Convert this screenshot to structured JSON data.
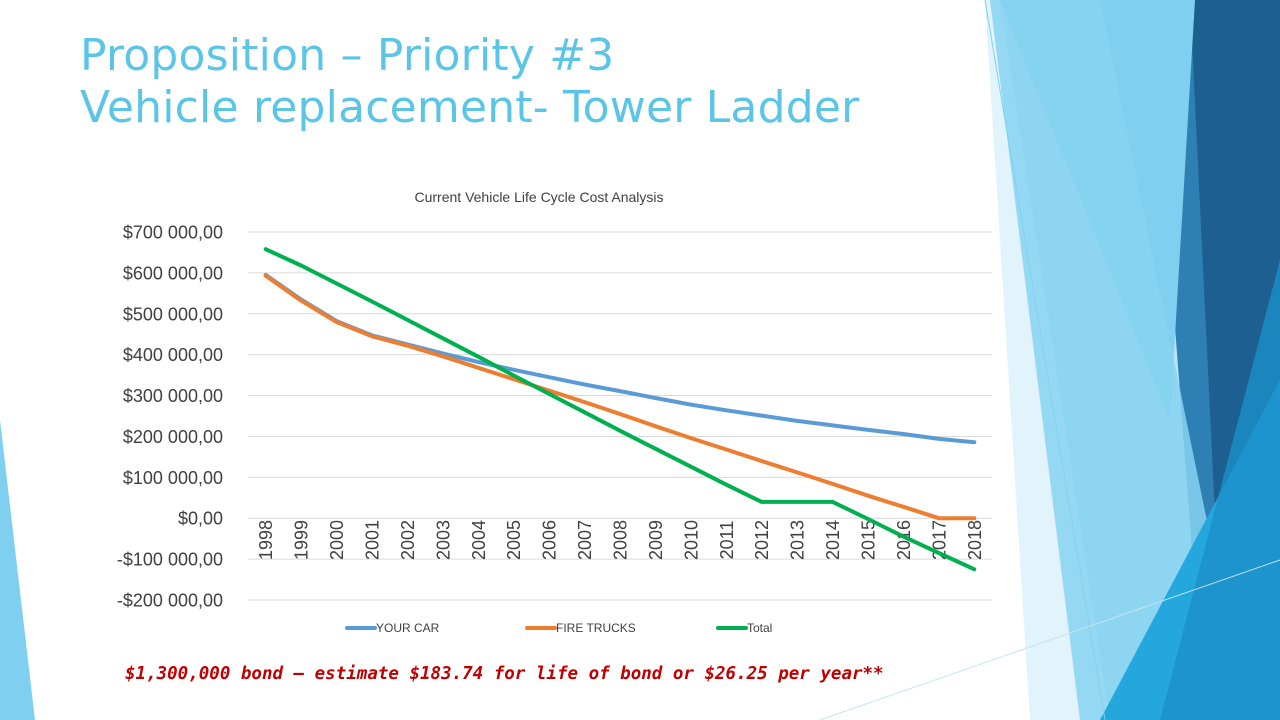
{
  "slide": {
    "title_line1": "Proposition – Priority #3",
    "title_line2": "Vehicle replacement- Tower Ladder",
    "footnote": "$1,300,000 bond – estimate $183.74 for life of bond or $26.25 per year**"
  },
  "chart_data": {
    "type": "line",
    "title": "Current Vehicle Life Cycle Cost Analysis",
    "xlabel": "",
    "ylabel": "",
    "categories": [
      "1998",
      "1999",
      "2000",
      "2001",
      "2002",
      "2003",
      "2004",
      "2005",
      "2006",
      "2007",
      "2008",
      "2009",
      "2010",
      "2011",
      "2012",
      "2013",
      "2014",
      "2015",
      "2016",
      "2017",
      "2018"
    ],
    "ylim": [
      -200000,
      700000
    ],
    "yticks": [
      {
        "value": 700000,
        "label": "$700 000,00"
      },
      {
        "value": 600000,
        "label": "$600 000,00"
      },
      {
        "value": 500000,
        "label": "$500 000,00"
      },
      {
        "value": 400000,
        "label": "$400 000,00"
      },
      {
        "value": 300000,
        "label": "$300 000,00"
      },
      {
        "value": 200000,
        "label": "$200 000,00"
      },
      {
        "value": 100000,
        "label": "$100 000,00"
      },
      {
        "value": 0,
        "label": "$0,00"
      },
      {
        "value": -100000,
        "label": "-$100 000,00"
      },
      {
        "value": -200000,
        "label": "-$200 000,00"
      }
    ],
    "grid": true,
    "legend_position": "bottom",
    "series": [
      {
        "name": "YOUR CAR",
        "color": "#5b9bd5",
        "values": [
          595000,
          535000,
          482000,
          447000,
          425000,
          403000,
          382000,
          363000,
          345000,
          327000,
          311000,
          294000,
          278000,
          264000,
          251000,
          238000,
          227000,
          216000,
          206000,
          194000,
          186000
        ]
      },
      {
        "name": "FIRE TRUCKS",
        "color": "#ed7d31",
        "values": [
          593000,
          532000,
          480000,
          445000,
          422000,
          396000,
          368000,
          340000,
          312000,
          284000,
          255000,
          225000,
          196000,
          168000,
          140000,
          112000,
          84000,
          55000,
          28000,
          0,
          0
        ]
      },
      {
        "name": "Total",
        "color": "#00b050",
        "values": [
          658000,
          618000,
          574000,
          530000,
          485000,
          440000,
          395000,
          349000,
          304000,
          259000,
          214000,
          170000,
          126000,
          82000,
          40000,
          40000,
          40000,
          -2000,
          -45000,
          -85000,
          -125000
        ]
      }
    ]
  },
  "theme": {
    "title_color": "#5bc5e8",
    "footnote_color": "#c00000",
    "grid_color": "#d9d9d9",
    "text_color": "#404040"
  }
}
